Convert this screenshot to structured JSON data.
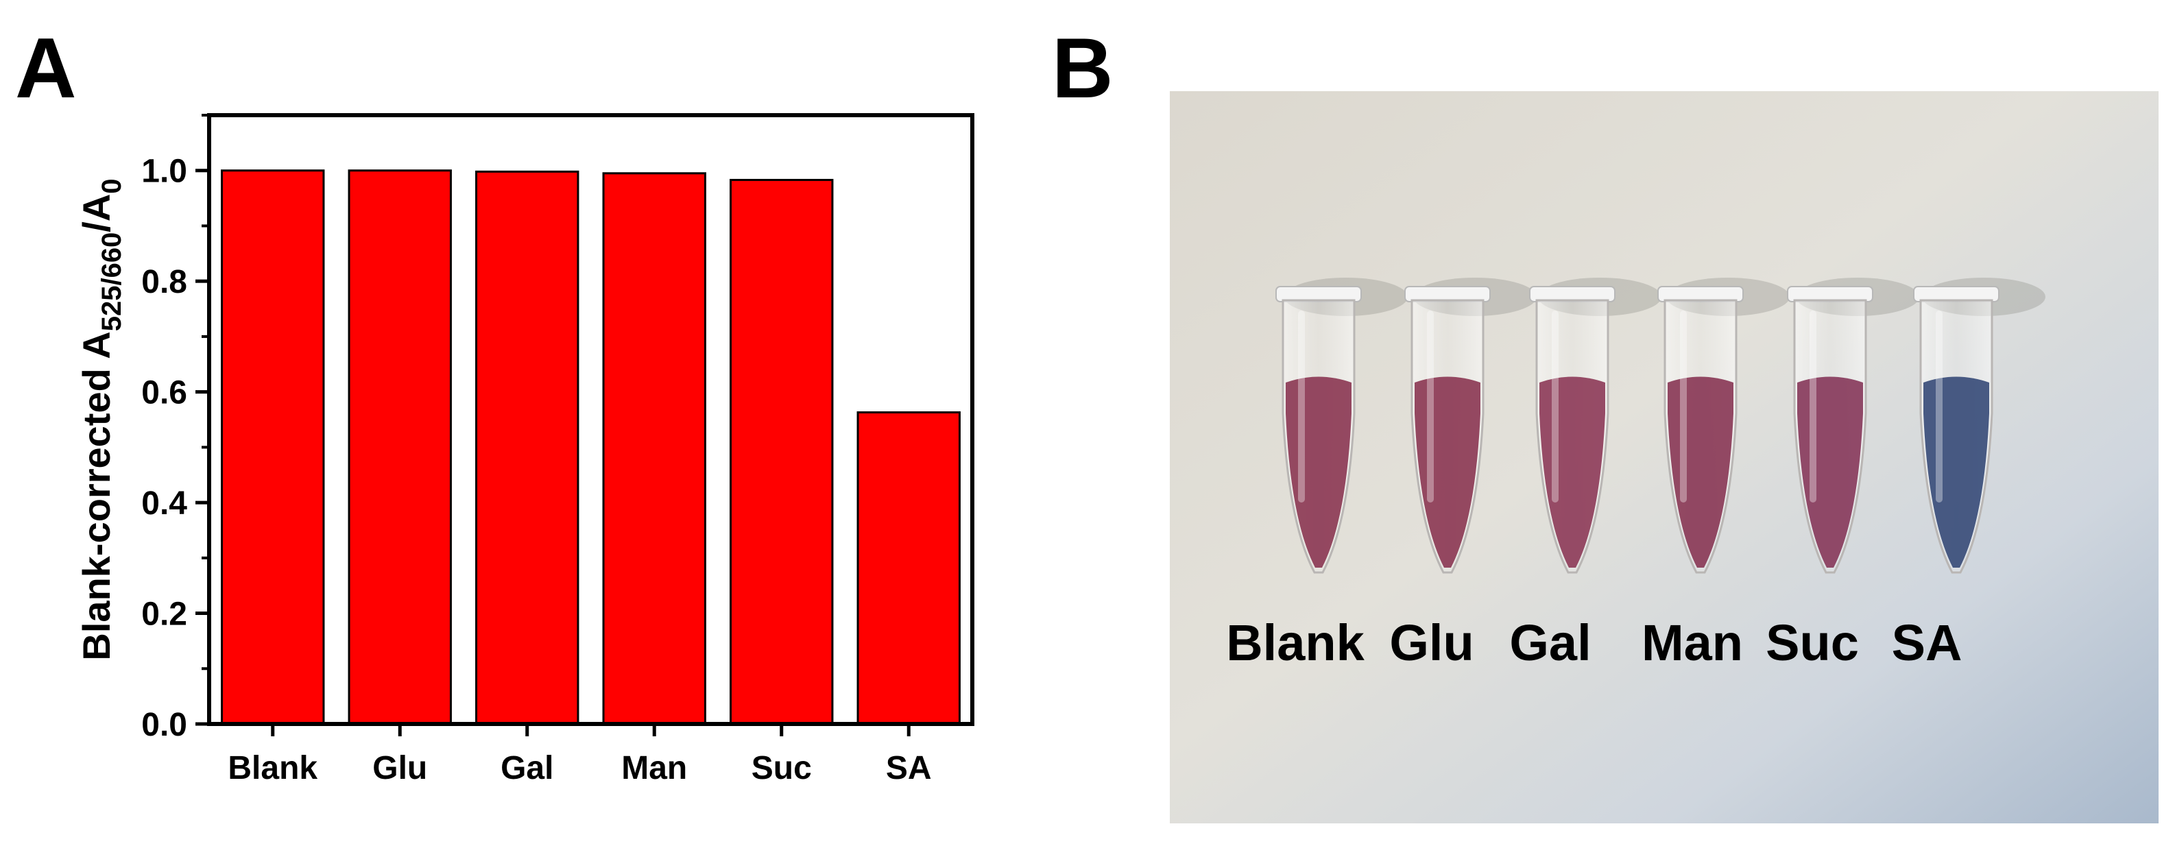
{
  "panels": {
    "a_label": "A",
    "b_label": "B"
  },
  "chart_data": {
    "type": "bar",
    "title": "",
    "xlabel": "",
    "ylabel_main": "Blank-corrected A",
    "ylabel_sub": "525/660",
    "ylabel_mid": "/A",
    "ylabel_sub2": "0",
    "categories": [
      "Blank",
      "Glu",
      "Gal",
      "Man",
      "Suc",
      "SA"
    ],
    "values": [
      1.0,
      1.0,
      0.998,
      0.995,
      0.983,
      0.563
    ],
    "ylim": [
      0,
      1.1
    ],
    "yticks": [
      "0.0",
      "0.2",
      "0.4",
      "0.6",
      "0.8",
      "1.0"
    ],
    "bar_color": "#ff0000",
    "grid": false,
    "legend": "none"
  },
  "photo": {
    "tube_labels": [
      "Blank",
      "Glu",
      "Gal",
      "Man",
      "Suc",
      "SA"
    ],
    "tube_colors": [
      "#8c3a55",
      "#8c3a55",
      "#8e3d5a",
      "#8a3a57",
      "#883b5c",
      "#3a4d7a"
    ]
  }
}
